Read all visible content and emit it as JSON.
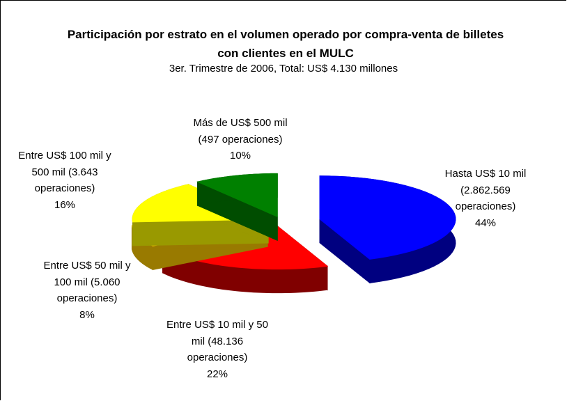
{
  "chart_data": {
    "type": "pie3d",
    "title": "Participación por estrato en el volumen operado por compra-venta de billetes con clientes en el MULC",
    "subtitle": "3er. Trimestre de 2006, Total: US$ 4.130 millones",
    "categories": [
      "Hasta US$ 10 mil (2.862.569 operaciones)",
      "Entre US$ 10 mil y 50 mil (48.136 operaciones)",
      "Entre US$ 50 mil y 100 mil (5.060 operaciones)",
      "Entre US$ 100 mil y 500 mil (3.643 operaciones)",
      "Más de US$ 500 mil (497 operaciones)"
    ],
    "values": [
      44,
      22,
      8,
      16,
      10
    ],
    "value_labels": [
      "44%",
      "22%",
      "8%",
      "16%",
      "10%"
    ],
    "colors": [
      "#0000ff",
      "#ff0000",
      "#ffcc00",
      "#ffff00",
      "#008000"
    ],
    "side_colors": [
      "#000080",
      "#800000",
      "#997a00",
      "#999900",
      "#004d00"
    ]
  }
}
